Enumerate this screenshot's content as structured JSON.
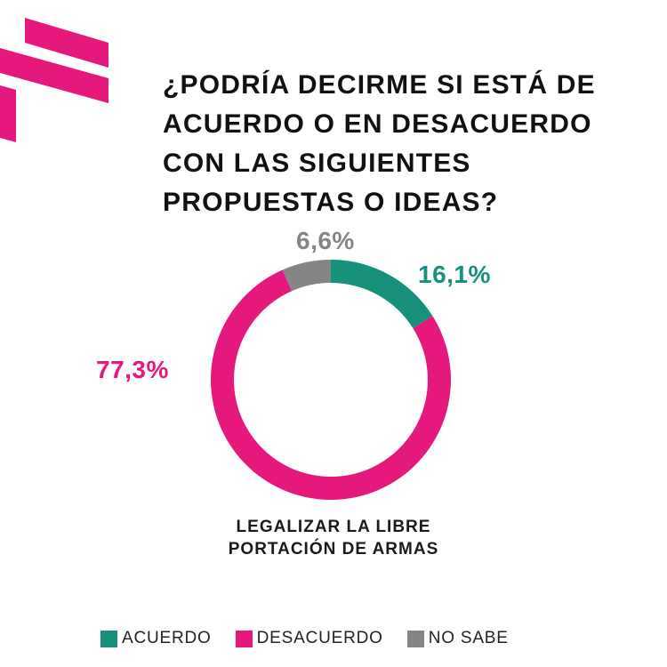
{
  "title_lines": [
    "¿PODRÍA DECIRME SI ESTÁ DE",
    "ACUERDO O EN DESACUERDO",
    "CON LAS SIGUIENTES",
    "PROPUESTAS O IDEAS?"
  ],
  "colors": {
    "acuerdo": "#17917b",
    "desacuerdo": "#e5187c",
    "no_sabe": "#858585",
    "logo": "#e5187c"
  },
  "chart_data": {
    "type": "pie",
    "variant": "donut",
    "title": "¿PODRÍA DECIRME SI ESTÁ DE ACUERDO O EN DESACUERDO CON LAS SIGUIENTES PROPUESTAS O IDEAS?",
    "category_label_lines": [
      "LEGALIZAR LA LIBRE",
      "PORTACIÓN DE ARMAS"
    ],
    "slices": [
      {
        "label": "ACUERDO",
        "value": 16.1,
        "display": "16,1%",
        "color": "#17917b"
      },
      {
        "label": "DESACUERDO",
        "value": 77.3,
        "display": "77,3%",
        "color": "#e5187c"
      },
      {
        "label": "NO SABE",
        "value": 6.6,
        "display": "6,6%",
        "color": "#858585"
      }
    ],
    "legend_position": "bottom"
  },
  "legend": [
    {
      "label": "ACUERDO",
      "color": "#17917b"
    },
    {
      "label": "DESACUERDO",
      "color": "#e5187c"
    },
    {
      "label": "NO SABE",
      "color": "#858585"
    }
  ]
}
